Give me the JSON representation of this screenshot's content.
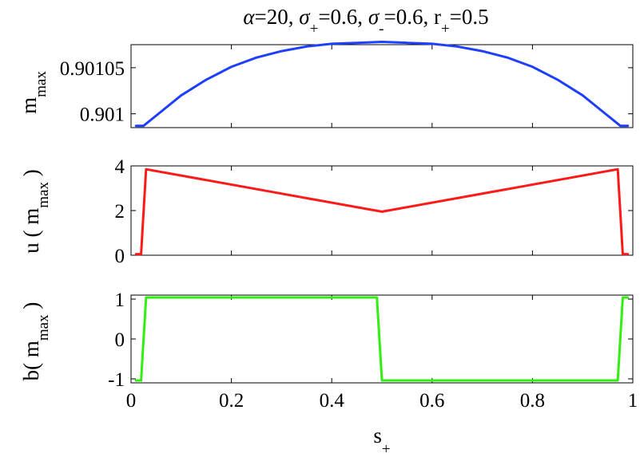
{
  "chart_data": [
    {
      "type": "line",
      "title": "",
      "xlabel": "",
      "ylabel": {
        "base": "m",
        "sub": "max"
      },
      "xlim": [
        0,
        1
      ],
      "ylim": [
        0.900985,
        0.901075
      ],
      "yticks": [
        {
          "value": 0.90105,
          "label": "0.90105"
        },
        {
          "value": 0.901,
          "label": "0.901"
        }
      ],
      "xtick_values": [
        0,
        0.2,
        0.4,
        0.6,
        0.8,
        1
      ],
      "grid": false,
      "series": [
        {
          "color": "#1f3fff",
          "x": [
            0.01,
            0.025,
            0.05,
            0.1,
            0.15,
            0.2,
            0.25,
            0.3,
            0.35,
            0.4,
            0.45,
            0.5,
            0.55,
            0.6,
            0.65,
            0.7,
            0.75,
            0.8,
            0.85,
            0.9,
            0.95,
            0.975,
            0.99
          ],
          "y": [
            0.900987,
            0.900987,
            0.900998,
            0.90102,
            0.901037,
            0.901051,
            0.901061,
            0.901068,
            0.901073,
            0.901076,
            0.901077,
            0.901078,
            0.901077,
            0.901076,
            0.901073,
            0.901068,
            0.901061,
            0.901051,
            0.901037,
            0.90102,
            0.900998,
            0.900987,
            0.900987
          ]
        }
      ]
    },
    {
      "type": "line",
      "title": "",
      "xlabel": "",
      "ylabel": {
        "pre": "u ( m",
        "sub": "max",
        "post": " )"
      },
      "xlim": [
        0,
        1
      ],
      "ylim": [
        0,
        4
      ],
      "yticks": [
        {
          "value": 4,
          "label": "4"
        },
        {
          "value": 2,
          "label": "2"
        },
        {
          "value": 0,
          "label": "0"
        }
      ],
      "xtick_values": [
        0,
        0.2,
        0.4,
        0.6,
        0.8,
        1
      ],
      "grid": false,
      "series": [
        {
          "color": "#ff1a1a",
          "x": [
            0.01,
            0.02,
            0.03,
            0.5,
            0.97,
            0.98,
            0.99
          ],
          "y": [
            0.05,
            0.05,
            3.85,
            1.95,
            3.85,
            0.05,
            0.05
          ]
        }
      ]
    },
    {
      "type": "line",
      "title": "",
      "xlabel": {
        "base": "s",
        "sub": "+"
      },
      "ylabel": {
        "pre": "b( m",
        "sub": "max",
        "post": " )"
      },
      "xlim": [
        0,
        1
      ],
      "ylim": [
        -1.1,
        1.1
      ],
      "yticks": [
        {
          "value": 1,
          "label": "1"
        },
        {
          "value": 0,
          "label": "0"
        },
        {
          "value": -1,
          "label": "-1"
        }
      ],
      "xticks": [
        {
          "value": 0,
          "label": "0"
        },
        {
          "value": 0.2,
          "label": "0.2"
        },
        {
          "value": 0.4,
          "label": "0.4"
        },
        {
          "value": 0.6,
          "label": "0.6"
        },
        {
          "value": 0.8,
          "label": "0.8"
        },
        {
          "value": 1,
          "label": "1"
        }
      ],
      "xtick_values": [
        0,
        0.2,
        0.4,
        0.6,
        0.8,
        1
      ],
      "grid": false,
      "series": [
        {
          "color": "#33ee11",
          "x": [
            0.01,
            0.02,
            0.03,
            0.49,
            0.5,
            0.97,
            0.98,
            0.99
          ],
          "y": [
            -1.04,
            -1.04,
            1.04,
            1.04,
            -1.04,
            -1.04,
            1.04,
            1.04
          ]
        }
      ]
    }
  ],
  "title": {
    "alpha": "α",
    "t1": "=20, ",
    "sigma1": "σ",
    "sub1": "+",
    "t2": "=0.6, ",
    "sigma2": "σ",
    "sub2": "-",
    "t3": "=0.6, r",
    "sub3": "+",
    "t4": "=0.5"
  }
}
